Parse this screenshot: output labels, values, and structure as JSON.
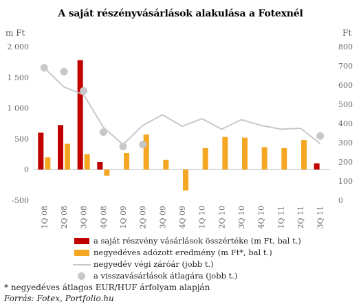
{
  "chart_data": {
    "type": "bar",
    "title": "A saját részényvásárlások alakulása a Fotexnél",
    "left_unit": "m Ft",
    "right_unit": "Ft",
    "categories": [
      "1Q 08",
      "2Q 08",
      "3Q 08",
      "4Q 08",
      "1Q 09",
      "2Q 09",
      "3Q 09",
      "4Q 09",
      "1Q 10",
      "2Q 10",
      "3Q 10",
      "4Q 10",
      "1Q 11",
      "2Q 11",
      "3Q 11"
    ],
    "left_axis": {
      "min": -500,
      "max": 2000,
      "ticks": [
        -500,
        0,
        500,
        1000,
        1500,
        2000
      ],
      "tick_labels": [
        "-500",
        "0",
        "500",
        "1 000",
        "1 500",
        "2 000"
      ]
    },
    "right_axis": {
      "min": 0,
      "max": 800,
      "ticks": [
        0,
        100,
        200,
        300,
        400,
        500,
        600,
        700,
        800
      ],
      "tick_labels": [
        "0",
        "100",
        "200",
        "300",
        "400",
        "500",
        "600",
        "700",
        "800"
      ]
    },
    "series": [
      {
        "name": "a saját részvény vásárlások összértéke (m Ft, bal t.)",
        "type": "bar",
        "axis": "left",
        "color": "#c00000",
        "values": [
          600,
          725,
          1780,
          125,
          null,
          null,
          null,
          null,
          null,
          null,
          null,
          null,
          null,
          null,
          100
        ]
      },
      {
        "name": "negyedéves adózott eredmény (m Ft*, bal t.)",
        "type": "bar",
        "axis": "left",
        "color": "#f5a623",
        "values": [
          200,
          420,
          250,
          -100,
          270,
          570,
          160,
          -340,
          350,
          530,
          520,
          365,
          350,
          480,
          null
        ]
      },
      {
        "name": "negyedév végi záróár (jobb t.)",
        "type": "line",
        "axis": "right",
        "color": "#c8c8c8",
        "values": [
          690,
          590,
          550,
          380,
          290,
          390,
          445,
          385,
          425,
          370,
          420,
          390,
          370,
          375,
          295
        ]
      },
      {
        "name": "a visszavásárlások átlagára (jobb t.)",
        "type": "scatter",
        "axis": "right",
        "color": "#c8c8c8",
        "values": [
          690,
          670,
          570,
          355,
          280,
          290,
          null,
          null,
          null,
          null,
          null,
          null,
          null,
          null,
          335
        ]
      }
    ],
    "grid": false,
    "legend_position": "bottom"
  },
  "footnote": "* negyedéves átlagos EUR/HUF árfolyam alapján",
  "source": "Forrás: Fotex, Portfolio.hu"
}
